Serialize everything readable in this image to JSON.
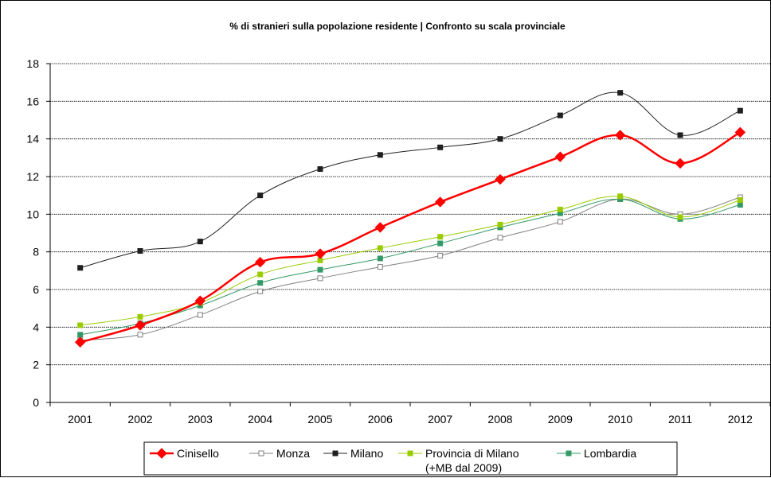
{
  "chart_data": {
    "type": "line",
    "title": "% di stranieri sulla popolazione residente | Confronto su scala provinciale",
    "xlabel": "",
    "ylabel": "",
    "categories": [
      "2001",
      "2002",
      "2003",
      "2004",
      "2005",
      "2006",
      "2007",
      "2008",
      "2009",
      "2010",
      "2011",
      "2012"
    ],
    "ylim": [
      0,
      18
    ],
    "yticks": [
      0,
      2,
      4,
      6,
      8,
      10,
      12,
      14,
      16,
      18
    ],
    "grid": "horizontal",
    "legend_position": "bottom",
    "series": [
      {
        "name": "Cinisello",
        "color": "#ff0000",
        "marker": "diamond-filled",
        "line_width": 2.5,
        "values": [
          3.2,
          4.1,
          5.4,
          7.45,
          7.9,
          9.3,
          10.65,
          11.85,
          13.05,
          14.2,
          12.7,
          14.35
        ]
      },
      {
        "name": "Monza",
        "color": "#808080",
        "marker": "square-hollow",
        "line_width": 1,
        "values": [
          3.3,
          3.6,
          4.65,
          5.9,
          6.6,
          7.2,
          7.8,
          8.75,
          9.6,
          10.8,
          10.0,
          10.9
        ]
      },
      {
        "name": "Milano",
        "color": "#1f1f1f",
        "marker": "square-filled",
        "line_width": 1,
        "values": [
          7.15,
          8.05,
          8.55,
          11.0,
          12.4,
          13.15,
          13.55,
          14.0,
          15.25,
          16.45,
          14.2,
          15.5
        ]
      },
      {
        "name": "Provincia di Milano (+MB dal 2009)",
        "color": "#99cc00",
        "marker": "square-filled",
        "line_width": 1,
        "values": [
          4.1,
          4.55,
          5.3,
          6.8,
          7.55,
          8.2,
          8.8,
          9.45,
          10.25,
          10.95,
          9.85,
          10.75
        ]
      },
      {
        "name": "Lombardia",
        "color": "#339966",
        "marker": "square-filled",
        "line_width": 1,
        "values": [
          3.6,
          4.2,
          5.15,
          6.35,
          7.05,
          7.65,
          8.45,
          9.3,
          10.05,
          10.8,
          9.75,
          10.5
        ]
      }
    ],
    "legend": {
      "items": [
        {
          "label": "Cinisello"
        },
        {
          "label": "Monza"
        },
        {
          "label": "Milano"
        },
        {
          "label": "Provincia di Milano",
          "label2": "(+MB dal 2009)"
        },
        {
          "label": "Lombardia"
        }
      ]
    }
  }
}
